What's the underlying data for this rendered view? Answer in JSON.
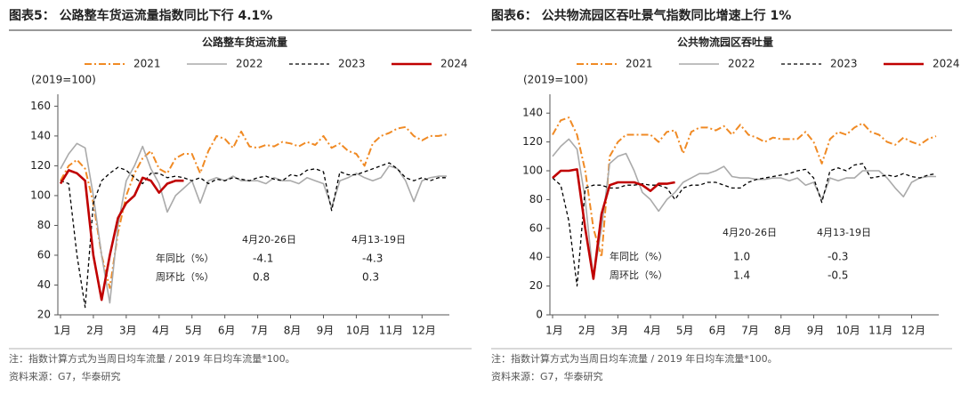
{
  "chart_data": [
    {
      "type": "line",
      "heading": "图表5：  公路整车货运流量指数同比下行 4.1%",
      "title": "公路整车货运流量",
      "ylabel": "(2019=100)",
      "note": "注：指数计算方式为当周日均车流量 / 2019 年日均车流量*100。",
      "source": "资料来源：G7，华泰研究",
      "categories": [
        "1月",
        null,
        null,
        null,
        "2月",
        null,
        null,
        null,
        "3月",
        null,
        null,
        null,
        "4月",
        null,
        null,
        null,
        "5月",
        null,
        null,
        null,
        "6月",
        null,
        null,
        null,
        "7月",
        null,
        null,
        null,
        "8月",
        null,
        null,
        null,
        "9月",
        null,
        null,
        null,
        "10月",
        null,
        null,
        null,
        "11月",
        null,
        null,
        null,
        "12月",
        null,
        null,
        null
      ],
      "ylim": [
        20,
        165
      ],
      "yticks": [
        20,
        40,
        60,
        80,
        100,
        120,
        140,
        160
      ],
      "series": [
        {
          "name": "2021",
          "color": "#f08a24",
          "values": [
            110,
            120,
            124,
            118,
            95,
            60,
            38,
            75,
            100,
            115,
            125,
            130,
            118,
            115,
            125,
            128,
            128,
            115,
            130,
            140,
            138,
            132,
            143,
            133,
            132,
            134,
            133,
            136,
            135,
            133,
            136,
            134,
            140,
            132,
            135,
            130,
            128,
            120,
            135,
            140,
            142,
            145,
            146,
            140,
            137,
            140,
            140,
            141
          ]
        },
        {
          "name": "2022",
          "color": "#aaaaaa",
          "values": [
            118,
            128,
            135,
            132,
            100,
            60,
            28,
            80,
            110,
            120,
            133,
            118,
            108,
            89,
            100,
            105,
            110,
            95,
            110,
            112,
            110,
            113,
            110,
            110,
            110,
            108,
            112,
            110,
            110,
            108,
            112,
            110,
            108,
            92,
            110,
            112,
            115,
            112,
            110,
            112,
            120,
            118,
            110,
            96,
            110,
            112,
            113,
            113
          ]
        },
        {
          "name": "2023",
          "color": "#000000",
          "values": [
            110,
            108,
            60,
            25,
            95,
            110,
            115,
            119,
            117,
            112,
            108,
            115,
            115,
            112,
            113,
            112,
            110,
            112,
            108,
            111,
            110,
            112,
            111,
            110,
            112,
            113,
            111,
            110,
            114,
            113,
            117,
            118,
            116,
            90,
            116,
            114,
            114,
            116,
            118,
            120,
            122,
            118,
            112,
            110,
            112,
            110,
            112,
            112
          ]
        },
        {
          "name": "2024",
          "color": "#c00000",
          "values": [
            108,
            117,
            115,
            110,
            60,
            30,
            60,
            85,
            95,
            100,
            112,
            110,
            102,
            108,
            110,
            110,
            null,
            null,
            null,
            null,
            null,
            null,
            null,
            null,
            null,
            null,
            null,
            null,
            null,
            null,
            null,
            null,
            null,
            null,
            null,
            null,
            null,
            null,
            null,
            null,
            null,
            null,
            null,
            null,
            null,
            null,
            null,
            null
          ]
        }
      ],
      "annotation_table": {
        "columns": [
          "4月20-26日",
          "4月13-19日"
        ],
        "rows": [
          {
            "label": "年同比（%）",
            "values": [
              "-4.1",
              "-4.3"
            ]
          },
          {
            "label": "周环比（%）",
            "values": [
              "0.8",
              "0.3"
            ]
          }
        ]
      }
    },
    {
      "type": "line",
      "heading": "图表6：  公共物流园区吞吐景气指数同比增速上行 1%",
      "title": "公共物流园区吞吐量",
      "ylabel": "(2019=100)",
      "note": "注：指数计算方式为当周日均车流量 / 2019 年日均车流量*100。",
      "source": "资料来源：G7，华泰研究",
      "categories": [
        "1月",
        null,
        null,
        null,
        "2月",
        null,
        null,
        null,
        "3月",
        null,
        null,
        null,
        "4月",
        null,
        null,
        null,
        "5月",
        null,
        null,
        null,
        "6月",
        null,
        null,
        null,
        "7月",
        null,
        null,
        null,
        "8月",
        null,
        null,
        null,
        "9月",
        null,
        null,
        null,
        "10月",
        null,
        null,
        null,
        "11月",
        null,
        null,
        null,
        "12月",
        null,
        null,
        null
      ],
      "ylim": [
        0,
        150
      ],
      "yticks": [
        0,
        20,
        40,
        60,
        80,
        100,
        120,
        140
      ],
      "series": [
        {
          "name": "2021",
          "color": "#f08a24",
          "values": [
            125,
            135,
            137,
            125,
            100,
            60,
            40,
            110,
            120,
            125,
            125,
            125,
            125,
            120,
            127,
            128,
            112,
            127,
            130,
            130,
            128,
            131,
            125,
            132,
            125,
            123,
            120,
            123,
            122,
            122,
            122,
            127,
            120,
            105,
            122,
            127,
            125,
            130,
            133,
            127,
            125,
            120,
            118,
            123,
            120,
            118,
            122,
            124
          ]
        },
        {
          "name": "2022",
          "color": "#aaaaaa",
          "values": [
            110,
            117,
            122,
            115,
            80,
            25,
            60,
            105,
            110,
            112,
            100,
            85,
            80,
            72,
            80,
            85,
            92,
            95,
            98,
            98,
            100,
            103,
            96,
            95,
            95,
            94,
            94,
            95,
            95,
            93,
            95,
            90,
            92,
            80,
            95,
            93,
            95,
            95,
            100,
            100,
            100,
            95,
            88,
            82,
            92,
            95,
            96,
            96
          ]
        },
        {
          "name": "2023",
          "color": "#000000",
          "values": [
            95,
            90,
            65,
            20,
            88,
            90,
            90,
            88,
            88,
            90,
            90,
            91,
            90,
            90,
            88,
            80,
            88,
            90,
            90,
            92,
            92,
            90,
            88,
            88,
            92,
            94,
            95,
            96,
            97,
            98,
            100,
            101,
            95,
            78,
            100,
            102,
            100,
            104,
            105,
            95,
            96,
            97,
            96,
            98,
            96,
            95,
            97,
            98
          ]
        },
        {
          "name": "2024",
          "color": "#c00000",
          "values": [
            95,
            100,
            100,
            101,
            60,
            25,
            70,
            90,
            92,
            92,
            92,
            90,
            86,
            91,
            91,
            92,
            null,
            null,
            null,
            null,
            null,
            null,
            null,
            null,
            null,
            null,
            null,
            null,
            null,
            null,
            null,
            null,
            null,
            null,
            null,
            null,
            null,
            null,
            null,
            null,
            null,
            null,
            null,
            null,
            null,
            null,
            null,
            null
          ]
        }
      ],
      "annotation_table": {
        "columns": [
          "4月20-26日",
          "4月13-19日"
        ],
        "rows": [
          {
            "label": "年同比（%）",
            "values": [
              "1.0",
              "-0.3"
            ]
          },
          {
            "label": "周环比（%）",
            "values": [
              "1.4",
              "-0.5"
            ]
          }
        ]
      }
    }
  ]
}
